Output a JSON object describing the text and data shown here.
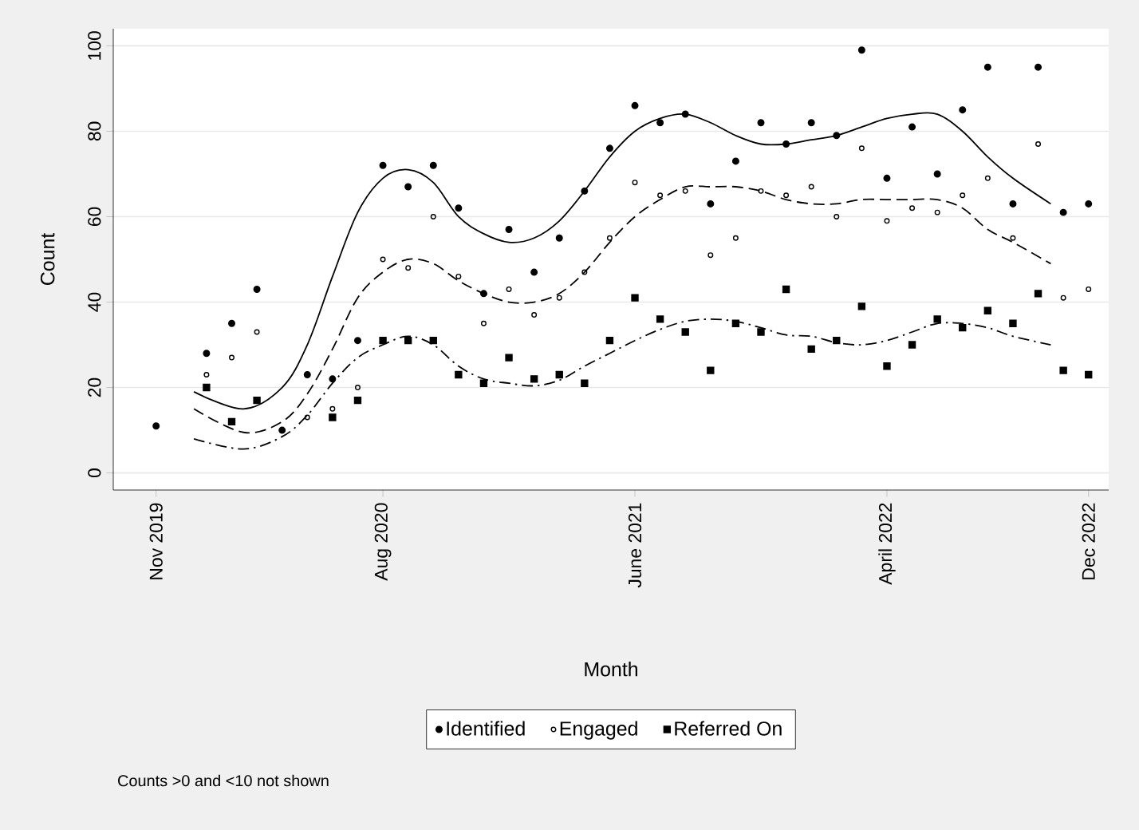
{
  "chart_data": {
    "type": "scatter",
    "xlabel": "Month",
    "ylabel": "Count",
    "annotations": [
      "Counts >0 and <10 not shown"
    ],
    "xlim": [
      "2019-09-10",
      "2022-12-25"
    ],
    "ylim": [
      -4,
      104
    ],
    "xticks": [
      {
        "value": "2019-11",
        "label": "Nov 2019"
      },
      {
        "value": "2020-08",
        "label": "Aug 2020"
      },
      {
        "value": "2021-06",
        "label": "June 2021"
      },
      {
        "value": "2022-04",
        "label": "April 2022"
      },
      {
        "value": "2022-12",
        "label": "Dec 2022"
      }
    ],
    "yticks": [
      0,
      20,
      40,
      60,
      80,
      100
    ],
    "grid": "y",
    "legend": "bottom",
    "series": [
      {
        "name": "Identified",
        "marker": "circle",
        "color": "#000000",
        "x": [
          "2019-11",
          "2020-01",
          "2020-02",
          "2020-03",
          "2020-04",
          "2020-05",
          "2020-06",
          "2020-07",
          "2020-08",
          "2020-09",
          "2020-10",
          "2020-11",
          "2020-12",
          "2021-01",
          "2021-02",
          "2021-03",
          "2021-04",
          "2021-05",
          "2021-06",
          "2021-07",
          "2021-08",
          "2021-09",
          "2021-10",
          "2021-11",
          "2021-12",
          "2022-01",
          "2022-02",
          "2022-03",
          "2022-04",
          "2022-05",
          "2022-06",
          "2022-07",
          "2022-08",
          "2022-09",
          "2022-10",
          "2022-11",
          "2022-12"
        ],
        "values": [
          11,
          28,
          35,
          43,
          10,
          23,
          22,
          31,
          72,
          67,
          72,
          62,
          42,
          57,
          47,
          55,
          66,
          76,
          86,
          82,
          84,
          63,
          73,
          82,
          77,
          82,
          79,
          99,
          69,
          81,
          70,
          85,
          95,
          63,
          95,
          61,
          63
        ]
      },
      {
        "name": "Engaged",
        "marker": "circle_open",
        "color": "#000000",
        "x": [
          "2020-01",
          "2020-02",
          "2020-03",
          "2020-05",
          "2020-06",
          "2020-07",
          "2020-08",
          "2020-09",
          "2020-10",
          "2020-11",
          "2020-12",
          "2021-01",
          "2021-02",
          "2021-03",
          "2021-04",
          "2021-05",
          "2021-06",
          "2021-07",
          "2021-08",
          "2021-09",
          "2021-10",
          "2021-11",
          "2021-12",
          "2022-01",
          "2022-02",
          "2022-03",
          "2022-04",
          "2022-05",
          "2022-06",
          "2022-07",
          "2022-08",
          "2022-09",
          "2022-10",
          "2022-11",
          "2022-12"
        ],
        "values": [
          23,
          27,
          33,
          13,
          15,
          20,
          50,
          48,
          60,
          46,
          35,
          43,
          37,
          41,
          47,
          55,
          68,
          65,
          66,
          51,
          55,
          66,
          65,
          67,
          60,
          76,
          59,
          62,
          61,
          65,
          69,
          55,
          77,
          41,
          43
        ]
      },
      {
        "name": "Referred On",
        "marker": "square",
        "color": "#000000",
        "x": [
          "2020-01",
          "2020-02",
          "2020-03",
          "2020-06",
          "2020-07",
          "2020-08",
          "2020-09",
          "2020-10",
          "2020-11",
          "2020-12",
          "2021-01",
          "2021-02",
          "2021-03",
          "2021-04",
          "2021-05",
          "2021-06",
          "2021-07",
          "2021-08",
          "2021-09",
          "2021-10",
          "2021-11",
          "2021-12",
          "2022-01",
          "2022-02",
          "2022-03",
          "2022-04",
          "2022-05",
          "2022-06",
          "2022-07",
          "2022-08",
          "2022-09",
          "2022-10",
          "2022-11",
          "2022-12"
        ],
        "values": [
          20,
          12,
          17,
          13,
          17,
          31,
          31,
          31,
          23,
          21,
          27,
          22,
          23,
          21,
          31,
          41,
          36,
          33,
          24,
          35,
          33,
          43,
          29,
          31,
          39,
          25,
          30,
          36,
          34,
          38,
          35,
          42,
          24,
          23
        ]
      },
      {
        "type": "line",
        "line_style": "solid",
        "color": "#000000",
        "x": [
          "2019-12-16",
          "2020-02-15",
          "2020-04",
          "2020-05",
          "2020-06",
          "2020-07",
          "2020-08",
          "2020-09",
          "2020-10",
          "2020-11",
          "2020-12",
          "2021-01",
          "2021-02",
          "2021-03",
          "2021-04",
          "2021-05",
          "2021-06",
          "2021-07",
          "2021-08",
          "2021-09",
          "2021-10",
          "2021-11",
          "2021-12",
          "2022-01",
          "2022-02",
          "2022-03",
          "2022-04",
          "2022-05",
          "2022-06",
          "2022-07",
          "2022-08",
          "2022-09",
          "2022-10-16"
        ],
        "values": [
          19,
          15,
          20,
          30,
          46,
          61,
          69,
          71,
          68,
          60,
          56,
          54,
          55,
          59,
          66,
          74,
          80,
          83,
          84,
          82,
          79,
          77,
          77,
          78,
          79,
          81,
          83,
          84,
          84,
          80,
          74,
          69,
          63
        ]
      },
      {
        "type": "line",
        "line_style": "dashed",
        "color": "#000000",
        "x": [
          "2019-12-16",
          "2020-02-15",
          "2020-04",
          "2020-05",
          "2020-06",
          "2020-07",
          "2020-08",
          "2020-09",
          "2020-10",
          "2020-11",
          "2020-12",
          "2021-01",
          "2021-02",
          "2021-03",
          "2021-04",
          "2021-05",
          "2021-06",
          "2021-07",
          "2021-08",
          "2021-09",
          "2021-10",
          "2021-11",
          "2021-12",
          "2022-01",
          "2022-02",
          "2022-03",
          "2022-04",
          "2022-05",
          "2022-06",
          "2022-07",
          "2022-08",
          "2022-09",
          "2022-10-16"
        ],
        "values": [
          15,
          9.5,
          12,
          18.5,
          29,
          41,
          47,
          50,
          49,
          45,
          42,
          40,
          40,
          42,
          47,
          54,
          60,
          64,
          67,
          67,
          67,
          66,
          64,
          63,
          63,
          64,
          64,
          64,
          64,
          62,
          57,
          54,
          49
        ]
      },
      {
        "type": "line",
        "line_style": "dashdot",
        "color": "#000000",
        "x": [
          "2019-12-16",
          "2020-02-15",
          "2020-04",
          "2020-05",
          "2020-06",
          "2020-07",
          "2020-08",
          "2020-09",
          "2020-10",
          "2020-11",
          "2020-12",
          "2021-01",
          "2021-02",
          "2021-03",
          "2021-04",
          "2021-05",
          "2021-06",
          "2021-07",
          "2021-08",
          "2021-09",
          "2021-10",
          "2021-11",
          "2021-12",
          "2022-01",
          "2022-02",
          "2022-03",
          "2022-04",
          "2022-05",
          "2022-06",
          "2022-07",
          "2022-08",
          "2022-09",
          "2022-10-16"
        ],
        "values": [
          8,
          5.6,
          8.5,
          13.5,
          21,
          27,
          30,
          32,
          30,
          25,
          22,
          21,
          20.4,
          21.7,
          25,
          28,
          31,
          33.6,
          35.5,
          36,
          35.5,
          34,
          32.3,
          32,
          30.5,
          30,
          31,
          33,
          35,
          35,
          34,
          32,
          30
        ]
      }
    ]
  }
}
